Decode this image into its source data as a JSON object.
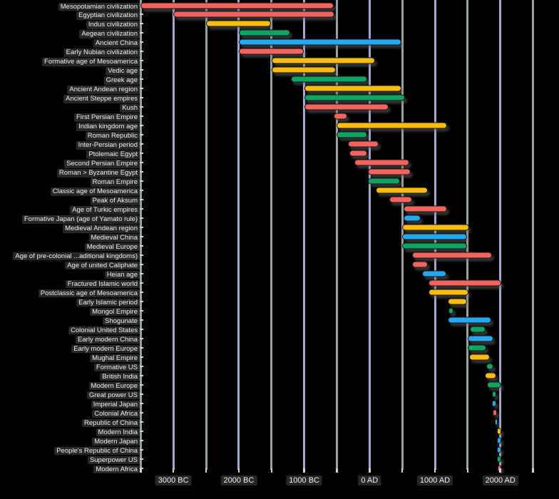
{
  "palette": {
    "background": "#000000",
    "bar_red": "#F4635E",
    "bar_yellow": "#FBBD0D",
    "bar_green": "#0FA462",
    "bar_blue": "#23A8F2",
    "bar_outline": "#161616",
    "grid_minor": "#97a29d",
    "grid_major": "#a4a5cf",
    "tick_color": "#cdd3d0",
    "label_text": "#ececec"
  },
  "chart_data": {
    "type": "bar",
    "variant": "horizontal-timeline-gantt",
    "title": "",
    "xlabel": "",
    "ylabel": "",
    "legend": "none",
    "grid": "vertical-on",
    "x_axis": {
      "tick_labels": [
        "3000 BC",
        "2000 BC",
        "1000 BC",
        "0 AD",
        "1000 AD",
        "2000 AD"
      ],
      "tick_years": [
        -3000,
        -2000,
        -1000,
        0,
        1000,
        2000
      ],
      "minor_gridline_step_years": 500,
      "gridline_range_years": [
        -3500,
        2500
      ]
    },
    "rows": [
      {
        "label": "Mesopotamian civilization",
        "color": "red",
        "start_year": -3500,
        "end_year": -540
      },
      {
        "label": "Egyptian civilization",
        "color": "red",
        "start_year": -3000,
        "end_year": -525
      },
      {
        "label": "Indus civilization",
        "color": "yellow",
        "start_year": -2500,
        "end_year": -1500
      },
      {
        "label": "Aegean civilization",
        "color": "green",
        "start_year": -2000,
        "end_year": -1200
      },
      {
        "label": "Ancient China",
        "color": "blue",
        "start_year": -2000,
        "end_year": 500
      },
      {
        "label": "Early Nubian civilization",
        "color": "red",
        "start_year": -2000,
        "end_year": -1000
      },
      {
        "label": "Formative age of Mesoamerica",
        "color": "yellow",
        "start_year": -1500,
        "end_year": 100
      },
      {
        "label": "Vedic age",
        "color": "yellow",
        "start_year": -1500,
        "end_year": -500
      },
      {
        "label": "Greek age",
        "color": "green",
        "start_year": -1200,
        "end_year": -30
      },
      {
        "label": "Ancient Andean region",
        "color": "yellow",
        "start_year": -1000,
        "end_year": 500
      },
      {
        "label": "Ancient Steppe empires",
        "color": "green",
        "start_year": -1000,
        "end_year": 550
      },
      {
        "label": "Kush",
        "color": "red",
        "start_year": -1000,
        "end_year": 300
      },
      {
        "label": "First Persian Empire",
        "color": "red",
        "start_year": -550,
        "end_year": -330
      },
      {
        "label": "Indian kingdom age",
        "color": "yellow",
        "start_year": -500,
        "end_year": 1200
      },
      {
        "label": "Roman Republic",
        "color": "green",
        "start_year": -500,
        "end_year": -25
      },
      {
        "label": "Inter-Persian period",
        "color": "red",
        "start_year": -330,
        "end_year": 150
      },
      {
        "label": "Ptolemaic Egypt",
        "color": "red",
        "start_year": -305,
        "end_year": -30
      },
      {
        "label": "Second Persian Empire",
        "color": "red",
        "start_year": -230,
        "end_year": 620
      },
      {
        "label": "Roman > Byzantine Egypt",
        "color": "red",
        "start_year": -30,
        "end_year": 640
      },
      {
        "label": "Roman Empire",
        "color": "green",
        "start_year": -27,
        "end_year": 476
      },
      {
        "label": "Classic age of Mesoamerica",
        "color": "yellow",
        "start_year": 100,
        "end_year": 900
      },
      {
        "label": "Peak of Aksum",
        "color": "red",
        "start_year": 300,
        "end_year": 660
      },
      {
        "label": "Age of Turkic empires",
        "color": "red",
        "start_year": 520,
        "end_year": 1200
      },
      {
        "label": "Formative Japan (age of Yamato rule)",
        "color": "blue",
        "start_year": 520,
        "end_year": 790
      },
      {
        "label": "Medieval Andean region",
        "color": "yellow",
        "start_year": 500,
        "end_year": 1530
      },
      {
        "label": "Medieval China",
        "color": "blue",
        "start_year": 500,
        "end_year": 1500
      },
      {
        "label": "Medieval Europe",
        "color": "green",
        "start_year": 500,
        "end_year": 1500
      },
      {
        "label": "Age of pre-colonial ...aditional kingdoms)",
        "color": "red",
        "start_year": 650,
        "end_year": 1880
      },
      {
        "label": "Age of united Caliphate",
        "color": "red",
        "start_year": 650,
        "end_year": 900
      },
      {
        "label": "Heian age",
        "color": "blue",
        "start_year": 800,
        "end_year": 1190
      },
      {
        "label": "Fractured Islamic world",
        "color": "red",
        "start_year": 900,
        "end_year": 2020
      },
      {
        "label": "Postclassic age of Mesoamerica",
        "color": "yellow",
        "start_year": 900,
        "end_year": 1520
      },
      {
        "label": "Early Islamic period",
        "color": "yellow",
        "start_year": 1200,
        "end_year": 1500
      },
      {
        "label": "Mongol Empire",
        "color": "green",
        "start_year": 1210,
        "end_year": 1290
      },
      {
        "label": "Shogunate",
        "color": "blue",
        "start_year": 1200,
        "end_year": 1870
      },
      {
        "label": "Colonial United States",
        "color": "green",
        "start_year": 1530,
        "end_year": 1780
      },
      {
        "label": "Early modern China",
        "color": "blue",
        "start_year": 1500,
        "end_year": 1910
      },
      {
        "label": "Early modern Europe",
        "color": "green",
        "start_year": 1500,
        "end_year": 1800
      },
      {
        "label": "Mughal Empire",
        "color": "yellow",
        "start_year": 1520,
        "end_year": 1850
      },
      {
        "label": "Formative US",
        "color": "green",
        "start_year": 1780,
        "end_year": 1900
      },
      {
        "label": "British India",
        "color": "yellow",
        "start_year": 1760,
        "end_year": 1950
      },
      {
        "label": "Modern Europe",
        "color": "green",
        "start_year": 1800,
        "end_year": 2020
      },
      {
        "label": "Great power US",
        "color": "green",
        "start_year": 1870,
        "end_year": 1945
      },
      {
        "label": "Imperial Japan",
        "color": "blue",
        "start_year": 1870,
        "end_year": 1945
      },
      {
        "label": "Colonial Africa",
        "color": "red",
        "start_year": 1880,
        "end_year": 1960
      },
      {
        "label": "Republic of China",
        "color": "blue",
        "start_year": 1912,
        "end_year": 1949
      },
      {
        "label": "Modern India",
        "color": "yellow",
        "start_year": 1947,
        "end_year": 2020
      },
      {
        "label": "Modern Japan",
        "color": "blue",
        "start_year": 1945,
        "end_year": 2020
      },
      {
        "label": "People's Republic of China",
        "color": "blue",
        "start_year": 1949,
        "end_year": 2020
      },
      {
        "label": "Superpower US",
        "color": "green",
        "start_year": 1945,
        "end_year": 2020
      },
      {
        "label": "Modern Africa",
        "color": "red",
        "start_year": 1960,
        "end_year": 2020
      }
    ]
  }
}
